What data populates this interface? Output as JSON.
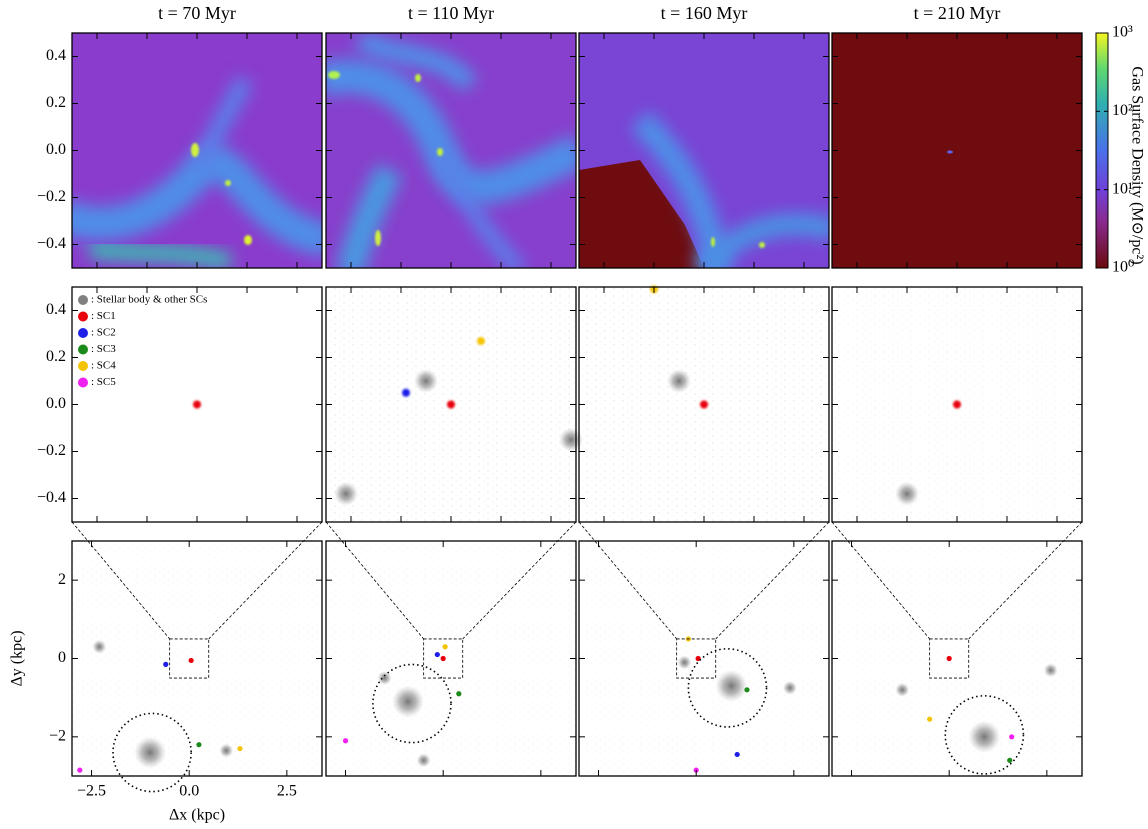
{
  "chart_data": {
    "type": "scatter",
    "titles": [
      "t = 70 Myr",
      "t = 110 Myr",
      "t = 160 Myr",
      "t = 210 Myr"
    ],
    "zoom": {
      "xlim": [
        -0.5,
        0.5
      ],
      "ylim": [
        -0.5,
        0.5
      ],
      "xticks": [
        -0.4,
        -0.2,
        0,
        0.2,
        0.4
      ],
      "yticks": [
        0.4,
        0.2,
        {
          "value": 0,
          "label": "0.0"
        },
        {
          "value": -0.2,
          "label": "−0.2"
        },
        {
          "value": -0.4,
          "label": "−0.4"
        }
      ]
    },
    "wide": {
      "xlim": [
        -3,
        3.4
      ],
      "ylim": [
        -3,
        3
      ],
      "xticks": [
        {
          "value": -2.5,
          "label": "−2.5"
        },
        {
          "value": 0,
          "label": "0.0"
        },
        2.5
      ],
      "yticks": [
        2,
        0,
        {
          "value": -2,
          "label": "−2"
        }
      ],
      "xlabel": "Δx (kpc)",
      "ylabel": "Δy (kpc)",
      "zoom_box": [
        -0.5,
        0.5
      ],
      "halo": {
        "x": [
          -0.95,
          -0.8,
          0.8,
          0.9
        ],
        "y": [
          -2.4,
          -1.15,
          -0.75,
          -1.95
        ],
        "r": [
          1.0,
          1.0,
          1.0,
          1.0
        ]
      }
    },
    "colorbar": {
      "label": "Gas Surface Density (M⊙/pc²)",
      "log": true,
      "lim": [
        1,
        1000
      ],
      "ticks": [
        {
          "value": 1,
          "label": "10⁰"
        },
        {
          "value": 10,
          "label": "10¹"
        },
        {
          "value": 100,
          "label": "10²"
        },
        {
          "value": 1000,
          "label": "10³"
        }
      ]
    },
    "legend": {
      "corner": "upper left",
      "entries": [
        {
          "name": ": Stellar body & other SCs",
          "color": "#808080",
          "zoom_x": [
            [],
            [
              -0.42,
              0.48,
              -0.1
            ],
            [
              -0.1
            ],
            [
              -0.2
            ]
          ],
          "zoom_y": [
            [],
            [
              -0.38,
              -0.15,
              0.1
            ],
            [
              0.1
            ],
            [
              -0.38
            ]
          ],
          "wide_x": [
            [
              -1.0,
              -2.3,
              0.95
            ],
            [
              -0.9,
              -1.5,
              -0.5
            ],
            [
              0.9,
              2.4,
              -0.3
            ],
            [
              0.9,
              -1.2,
              2.6
            ]
          ],
          "wide_y": [
            [
              -2.4,
              0.3,
              -2.35
            ],
            [
              -1.1,
              -0.5,
              -2.6
            ],
            [
              -0.7,
              -0.75,
              -0.1
            ],
            [
              -2.0,
              -0.8,
              -0.3
            ]
          ]
        },
        {
          "name": ": SC1",
          "color": "#e8000b",
          "zoom_x": [
            [
              0.0
            ],
            [
              0.0
            ],
            [
              0.0
            ],
            [
              0.0
            ]
          ],
          "zoom_y": [
            [
              0.0
            ],
            [
              0.0
            ],
            [
              0.0
            ],
            [
              0.0
            ]
          ],
          "wide_x": [
            [
              0.05
            ],
            [
              0.0
            ],
            [
              0.05
            ],
            [
              0.0
            ]
          ],
          "wide_y": [
            [
              -0.05
            ],
            [
              0.0
            ],
            [
              0.0
            ],
            [
              0.0
            ]
          ]
        },
        {
          "name": ": SC2",
          "color": "#1f1fe8",
          "zoom_x": [
            [],
            [
              -0.18
            ],
            [],
            []
          ],
          "zoom_y": [
            [],
            [
              0.05
            ],
            [],
            []
          ],
          "wide_x": [
            [
              -0.6
            ],
            [
              -0.15
            ],
            [
              1.05
            ],
            []
          ],
          "wide_y": [
            [
              -0.15
            ],
            [
              0.1
            ],
            [
              -2.45
            ],
            []
          ]
        },
        {
          "name": ": SC3",
          "color": "#1a8a1a",
          "zoom_x": [
            [],
            [],
            [],
            []
          ],
          "zoom_y": [
            [],
            [],
            [],
            []
          ],
          "wide_x": [
            [
              0.25
            ],
            [
              0.4
            ],
            [
              1.3
            ],
            [
              1.55
            ]
          ],
          "wide_y": [
            [
              -2.2
            ],
            [
              -0.9
            ],
            [
              -0.8
            ],
            [
              -2.6
            ]
          ]
        },
        {
          "name": ": SC4",
          "color": "#f5c400",
          "zoom_x": [
            [],
            [
              0.12
            ],
            [
              -0.2
            ],
            []
          ],
          "zoom_y": [
            [],
            [
              0.27
            ],
            [
              0.49
            ],
            []
          ],
          "wide_x": [
            [
              1.3
            ],
            [
              0.05
            ],
            [
              -0.2
            ],
            [
              -0.5
            ]
          ],
          "wide_y": [
            [
              -2.3
            ],
            [
              0.3
            ],
            [
              0.5
            ],
            [
              -1.55
            ]
          ]
        },
        {
          "name": ": SC5",
          "color": "#f020f0",
          "zoom_x": [
            [],
            [],
            [],
            []
          ],
          "zoom_y": [
            [],
            [],
            [],
            []
          ],
          "wide_x": [
            [
              -2.8
            ],
            [
              -2.5
            ],
            [
              0.0
            ],
            [
              1.6
            ]
          ],
          "wide_y": [
            [
              -2.85
            ],
            [
              -2.1
            ],
            [
              -2.85
            ],
            [
              -2.0
            ]
          ]
        }
      ]
    }
  }
}
